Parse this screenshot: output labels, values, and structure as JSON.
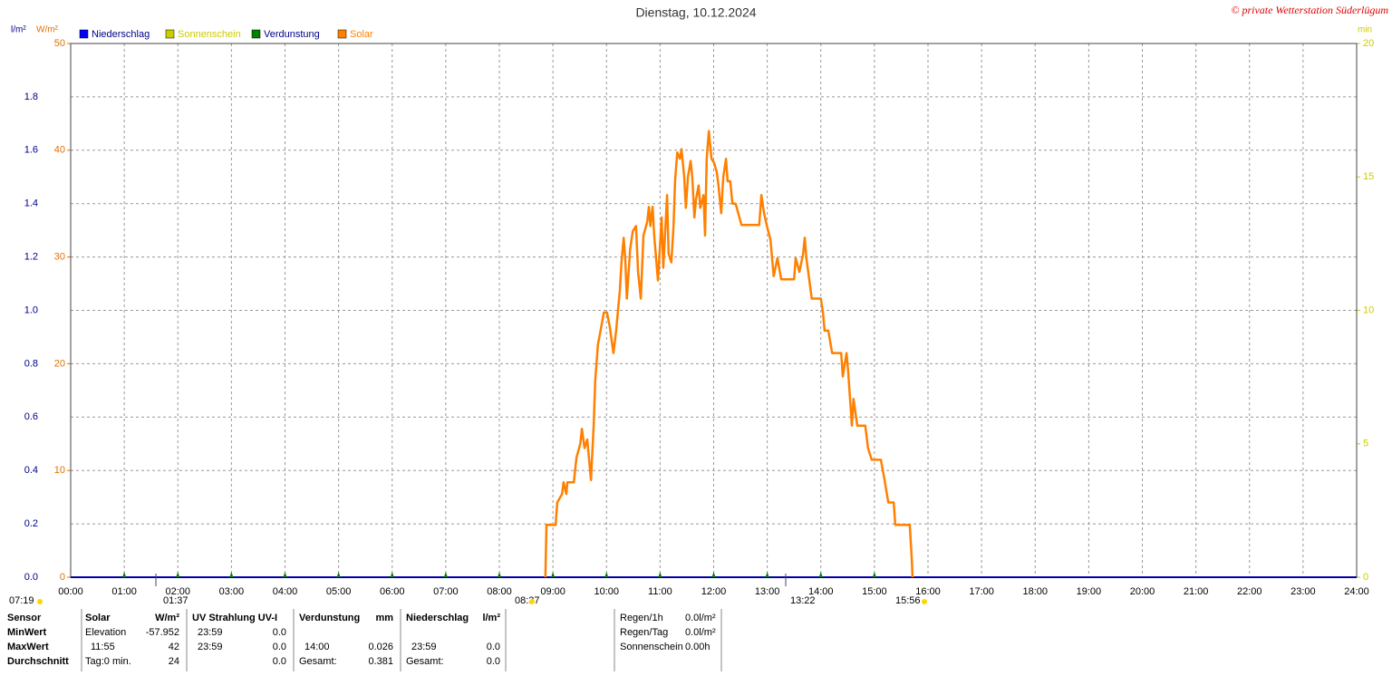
{
  "chart_data": {
    "type": "line",
    "title": "Dienstag, 10.12.2024",
    "copyright": "© private Wetterstation Süderlügum",
    "y3label": "l/m²",
    "ylabel": "W/m²",
    "y2label": "min",
    "legend": [
      {
        "name": "Niederschlag",
        "color": "#0000ff"
      },
      {
        "name": "Sonnenschein",
        "color": "#cccc00"
      },
      {
        "name": "Verdunstung",
        "color": "#008000"
      },
      {
        "name": "Solar",
        "color": "#ff8000"
      }
    ],
    "xlim": [
      0,
      24
    ],
    "xticks": [
      {
        "value": 0,
        "label": "00:00"
      },
      {
        "value": 1,
        "label": "01:00"
      },
      {
        "value": 2,
        "label": "02:00"
      },
      {
        "value": 3,
        "label": "03:00"
      },
      {
        "value": 4,
        "label": "04:00"
      },
      {
        "value": 5,
        "label": "05:00"
      },
      {
        "value": 6,
        "label": "06:00"
      },
      {
        "value": 7,
        "label": "07:00"
      },
      {
        "value": 8,
        "label": "08:00"
      },
      {
        "value": 9,
        "label": "09:00"
      },
      {
        "value": 10,
        "label": "10:00"
      },
      {
        "value": 11,
        "label": "11:00"
      },
      {
        "value": 12,
        "label": "12:00"
      },
      {
        "value": 13,
        "label": "13:00"
      },
      {
        "value": 14,
        "label": "14:00"
      },
      {
        "value": 15,
        "label": "15:00"
      },
      {
        "value": 16,
        "label": "16:00"
      },
      {
        "value": 17,
        "label": "17:00"
      },
      {
        "value": 18,
        "label": "18:00"
      },
      {
        "value": 19,
        "label": "19:00"
      },
      {
        "value": 20,
        "label": "20:00"
      },
      {
        "value": 21,
        "label": "21:00"
      },
      {
        "value": 22,
        "label": "22:00"
      },
      {
        "value": 23,
        "label": "23:00"
      },
      {
        "value": 24,
        "label": "24:00"
      }
    ],
    "ylim": [
      0,
      50
    ],
    "yticks": [
      0,
      10,
      20,
      30,
      40,
      50
    ],
    "y2lim": [
      0,
      20
    ],
    "y2ticks": [
      0,
      5,
      10,
      15,
      20
    ],
    "y3lim": [
      0,
      2
    ],
    "y3ticks": [
      {
        "value": 0,
        "label": "0.0"
      },
      0.2,
      0.4,
      0.6,
      0.8,
      {
        "value": 1,
        "label": "1.0"
      },
      1.2,
      1.4,
      1.6,
      1.8
    ],
    "grid": true,
    "annotations": [
      "07:19",
      "01:37",
      "08:37",
      "13:22",
      "15:56"
    ],
    "series": [
      {
        "name": "Solar",
        "color": "#ff8000",
        "x": [
          8.86,
          8.88,
          9.05,
          9.08,
          9.17,
          9.2,
          9.25,
          9.27,
          9.39,
          9.44,
          9.51,
          9.54,
          9.59,
          9.64,
          9.71,
          9.76,
          9.79,
          9.84,
          9.89,
          9.95,
          10.01,
          10.06,
          10.13,
          10.18,
          10.25,
          10.28,
          10.32,
          10.35,
          10.38,
          10.44,
          10.49,
          10.55,
          10.59,
          10.64,
          10.69,
          10.76,
          10.79,
          10.82,
          10.86,
          10.89,
          10.96,
          10.99,
          11.03,
          11.06,
          11.13,
          11.16,
          11.21,
          11.25,
          11.28,
          11.32,
          11.37,
          11.4,
          11.45,
          11.48,
          11.52,
          11.57,
          11.6,
          11.64,
          11.67,
          11.72,
          11.75,
          11.81,
          11.84,
          11.87,
          11.91,
          11.96,
          12.01,
          12.06,
          12.09,
          12.14,
          12.18,
          12.23,
          12.26,
          12.31,
          12.35,
          12.41,
          12.52,
          12.85,
          12.89,
          12.94,
          12.99,
          13.06,
          13.12,
          13.19,
          13.26,
          13.5,
          13.53,
          13.6,
          13.67,
          13.7,
          13.73,
          13.8,
          13.83,
          14.0,
          14.04,
          14.07,
          14.14,
          14.21,
          14.38,
          14.41,
          14.48,
          14.51,
          14.55,
          14.58,
          14.61,
          14.68,
          14.83,
          14.88,
          14.95,
          15.12,
          15.19,
          15.26,
          15.36,
          15.39,
          15.66,
          15.7,
          15.71
        ],
        "values": [
          0,
          4.9,
          4.9,
          7.0,
          7.8,
          8.9,
          7.8,
          8.9,
          8.9,
          11.2,
          12.5,
          13.9,
          12.1,
          12.9,
          9.1,
          14.2,
          18.4,
          21.8,
          23.1,
          24.8,
          24.8,
          23.5,
          21.0,
          23.1,
          26.9,
          29.5,
          31.8,
          29.9,
          26.1,
          30.7,
          32.4,
          32.9,
          28.6,
          26.1,
          32.0,
          33.3,
          34.7,
          32.9,
          34.7,
          32.0,
          27.8,
          30.3,
          33.7,
          29.0,
          35.8,
          30.3,
          29.5,
          32.9,
          37.1,
          39.8,
          39.2,
          40.1,
          37.5,
          34.6,
          37.5,
          39.0,
          37.5,
          33.7,
          35.4,
          36.7,
          34.6,
          35.8,
          32.0,
          39.2,
          41.8,
          39.2,
          38.8,
          37.9,
          36.7,
          34.1,
          37.5,
          39.2,
          37.1,
          37.1,
          35.0,
          35.0,
          33.0,
          33.0,
          35.8,
          34.1,
          33.0,
          31.6,
          28.2,
          29.9,
          27.9,
          27.9,
          29.9,
          28.6,
          30.3,
          31.8,
          29.9,
          27.3,
          26.1,
          26.1,
          24.8,
          23.1,
          23.1,
          21.0,
          21.0,
          18.8,
          21.0,
          19.3,
          16.3,
          14.2,
          16.7,
          14.2,
          14.2,
          12.1,
          11.0,
          11.0,
          9.1,
          7.0,
          7.0,
          4.9,
          4.9,
          1.4,
          0
        ]
      }
    ]
  },
  "table": {
    "header": [
      "Sensor",
      "Solar",
      "W/m²",
      "UV Strahlung UV-I",
      "Verdunstung",
      "mm",
      "Niederschlag",
      "l/m²"
    ],
    "rows": [
      {
        "label": "MinWert",
        "solar": {
          "note": "Elevation",
          "value": "-57.952"
        },
        "uv": {
          "note": "23:59",
          "value": "0.0"
        }
      },
      {
        "label": "MaxWert",
        "solar": {
          "note": "11:55",
          "value": "42"
        },
        "uv": {
          "note": "23:59",
          "value": "0.0"
        },
        "verdunstung": {
          "note": "14:00",
          "value": "0.026"
        },
        "niederschlag": {
          "note": "23:59",
          "value": "0.0"
        }
      },
      {
        "label": "Durchschnitt",
        "solar": {
          "note": "Tag:0 min.",
          "value": "24"
        },
        "uv": {
          "value": "0.0"
        },
        "verdunstung": {
          "note": "Gesamt:",
          "value": "0.381"
        },
        "niederschlag": {
          "note": "Gesamt:",
          "value": "0.0"
        }
      }
    ],
    "info": [
      {
        "label": "Regen/1h",
        "value": "0.0l/m²"
      },
      {
        "label": "Regen/Tag",
        "value": "0.0l/m²"
      },
      {
        "label": "Sonnenschein",
        "value": "0.00h"
      }
    ]
  }
}
